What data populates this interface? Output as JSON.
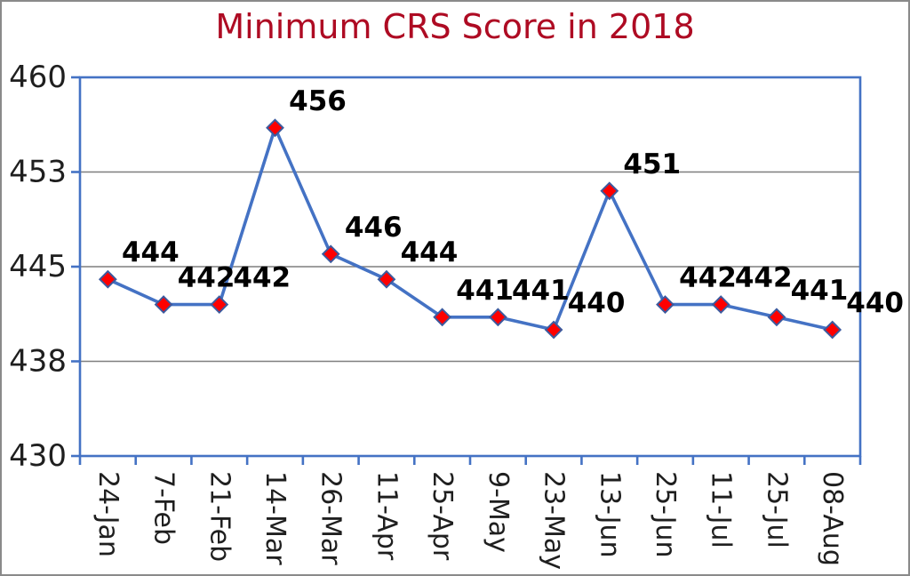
{
  "title": "Minimum CRS Score in 2018",
  "styles": {
    "title_color": "#AE0B23",
    "line_color": "#4472C4",
    "marker_fill": "#FF0000",
    "marker_border": "#3C5A9E",
    "grid_color": "#7F7F7F",
    "axis_color": "#4472C4",
    "data_label_color": "#000000",
    "tick_label_color": "#1F1F1F",
    "outer_border_color": "#8A8A8A",
    "background": "#FFFFFF"
  },
  "chart_data": {
    "type": "line",
    "title": "Minimum CRS Score in 2018",
    "categories": [
      "24-Jan",
      "7-Feb",
      "21-Feb",
      "14-Mar",
      "26-Mar",
      "11-Apr",
      "25-Apr",
      "9-May",
      "23-May",
      "13-Jun",
      "25-Jun",
      "11-Jul",
      "25-Jul",
      "08-Aug"
    ],
    "values": [
      444,
      442,
      442,
      456,
      446,
      444,
      441,
      441,
      440,
      451,
      442,
      442,
      441,
      440
    ],
    "data_labels": [
      "444",
      "442",
      "442",
      "456",
      "446",
      "444",
      "441",
      "441",
      "440",
      "451",
      "442",
      "442",
      "441",
      "440"
    ],
    "xlabel": "",
    "ylabel": "",
    "ylim": [
      430,
      460
    ],
    "yticks": [
      {
        "value": 430,
        "label": "430"
      },
      {
        "value": 437.5,
        "label": "438"
      },
      {
        "value": 445,
        "label": "445"
      },
      {
        "value": 452.5,
        "label": "453"
      },
      {
        "value": 460,
        "label": "460"
      }
    ],
    "grid": true,
    "legend": "none",
    "marker": "diamond",
    "x_tick_rotation_deg": 90
  }
}
